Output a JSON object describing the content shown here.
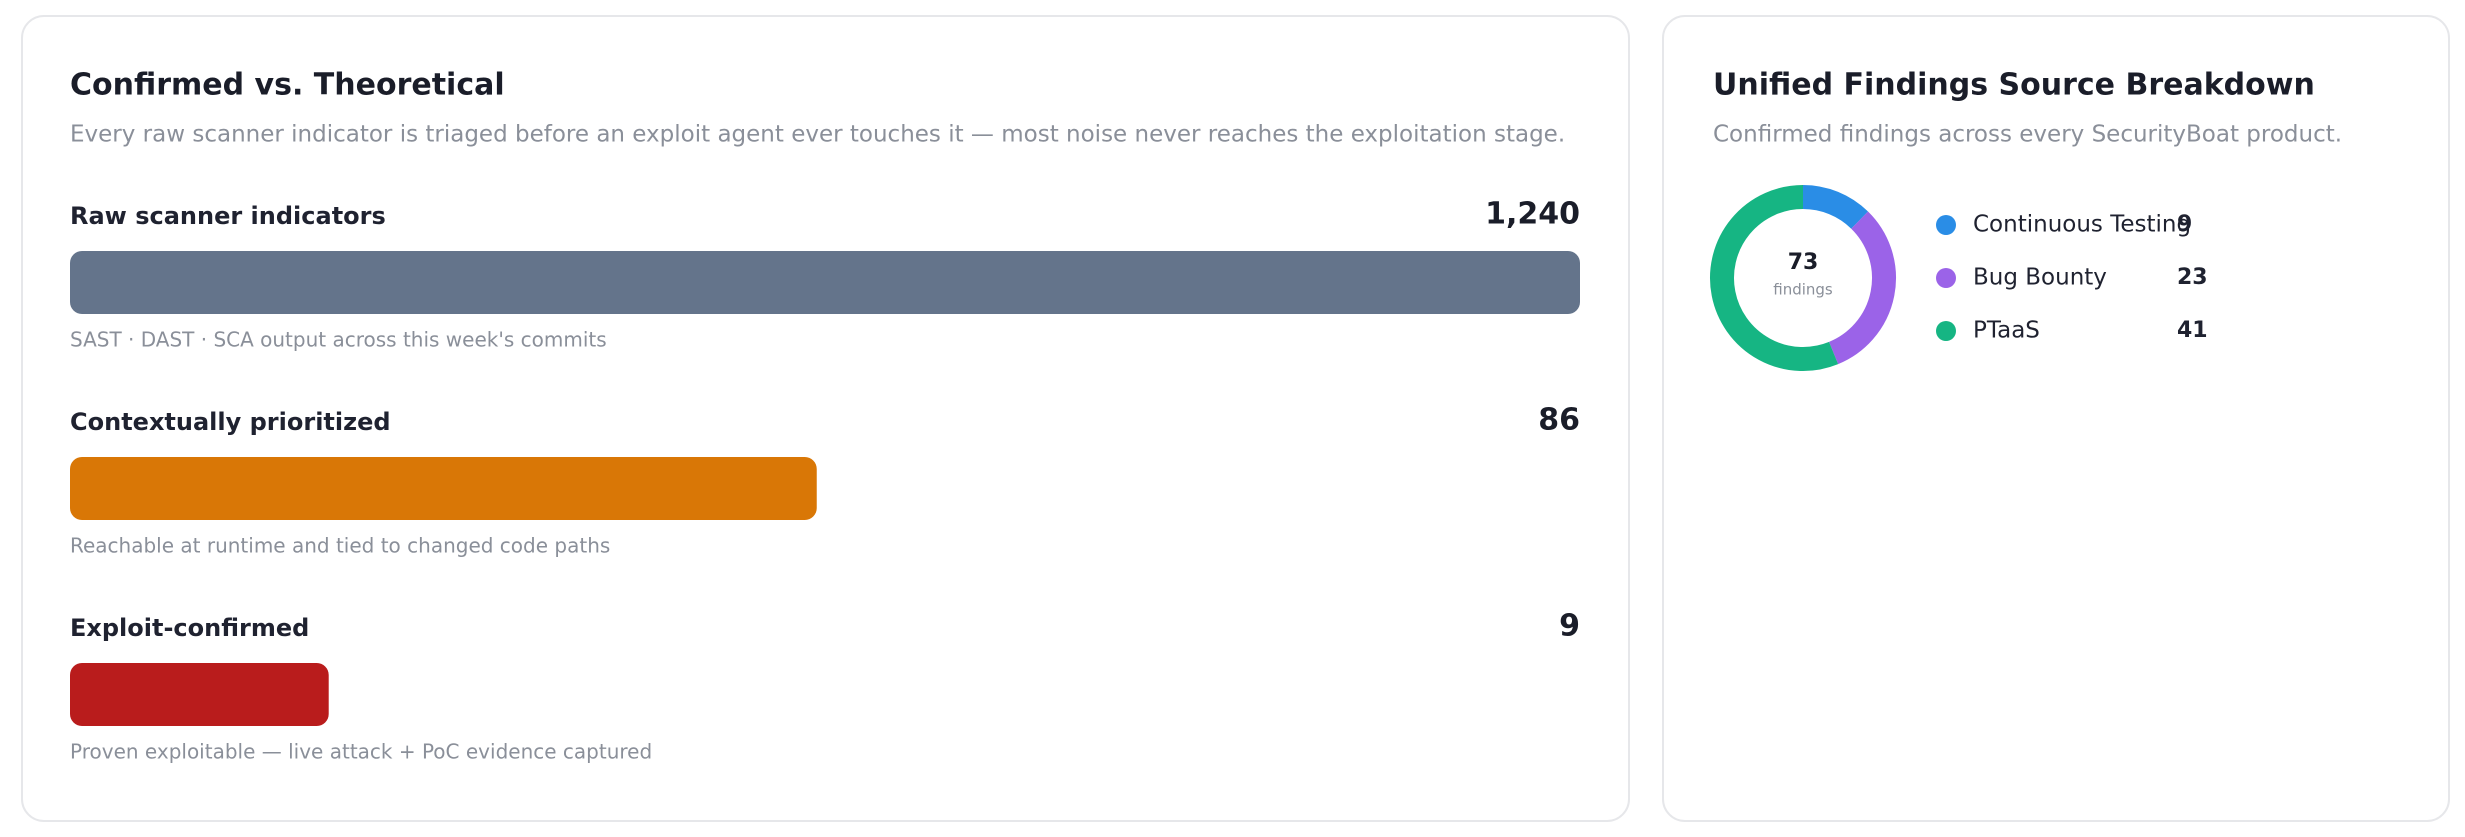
{
  "chart_data": [
    {
      "type": "bar",
      "title": "Confirmed vs. Theoretical",
      "subtitle": "Every raw scanner indicator is triaged before an exploit agent ever touches it — most noise never reaches the exploitation stage.",
      "categories": [
        "Raw scanner indicators",
        "Contextually prioritized",
        "Exploit-confirmed"
      ],
      "values": [
        1240,
        86,
        9
      ],
      "value_labels": [
        "1,240",
        "86",
        "9"
      ],
      "notes": [
        "SAST · DAST · SCA output across this week's commits",
        "Reachable at runtime and tied to changed code paths",
        "Proven exploitable — live attack + PoC evidence captured"
      ],
      "colors": [
        "#64748b",
        "#d97706",
        "#b91c1c"
      ]
    },
    {
      "type": "donut",
      "title": "Unified Findings Source Breakdown",
      "subtitle": "Confirmed findings across every SecurityBoat product.",
      "categories": [
        "Continuous Testing",
        "Bug Bounty",
        "PTaaS"
      ],
      "values": [
        9,
        23,
        41
      ],
      "colors": [
        "#2a8de6",
        "#9b63e8",
        "#16b583"
      ],
      "total": 73,
      "center_label": "findings"
    }
  ]
}
